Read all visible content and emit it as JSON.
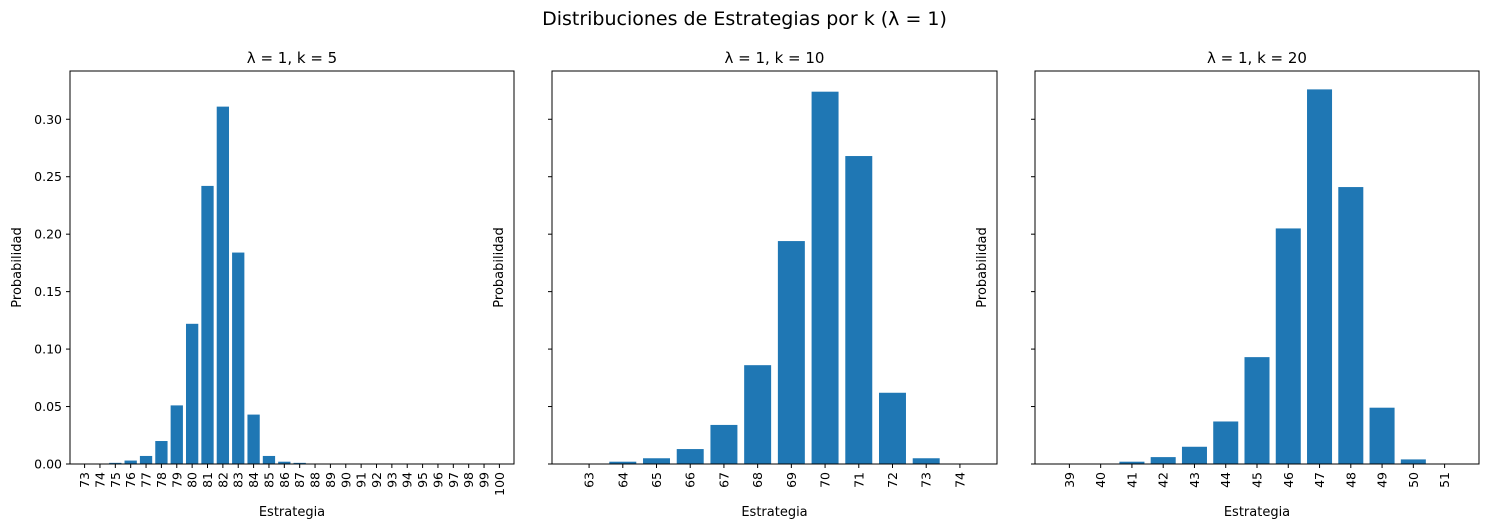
{
  "figure": {
    "suptitle": "Distribuciones de Estrategias por k (λ = 1)",
    "bar_color": "#1f77b4"
  },
  "chart_data": [
    {
      "type": "bar",
      "title": "λ = 1, k = 5",
      "xlabel": "Estrategia",
      "ylabel": "Probabilidad",
      "ylim": [
        0,
        0.342
      ],
      "yticks": [
        "0.00",
        "0.05",
        "0.10",
        "0.15",
        "0.20",
        "0.25",
        "0.30"
      ],
      "categories": [
        "73",
        "74",
        "75",
        "76",
        "77",
        "78",
        "79",
        "80",
        "81",
        "82",
        "83",
        "84",
        "85",
        "86",
        "87",
        "88",
        "89",
        "90",
        "91",
        "92",
        "93",
        "94",
        "95",
        "96",
        "97",
        "98",
        "99",
        "100"
      ],
      "values": [
        0.0,
        0.0,
        0.001,
        0.003,
        0.007,
        0.02,
        0.051,
        0.122,
        0.242,
        0.311,
        0.184,
        0.043,
        0.007,
        0.002,
        0.001,
        0.0,
        0.0,
        0.0,
        0.0,
        0.0,
        0.0,
        0.0,
        0.0,
        0.0,
        0.0,
        0.0,
        0.0,
        0.0
      ]
    },
    {
      "type": "bar",
      "title": "λ = 1, k = 10",
      "xlabel": "Estrategia",
      "ylabel": "Probabilidad",
      "ylim": [
        0,
        0.342
      ],
      "yticks": [],
      "categories": [
        "63",
        "64",
        "65",
        "66",
        "67",
        "68",
        "69",
        "70",
        "71",
        "72",
        "73",
        "74"
      ],
      "values": [
        0.0,
        0.002,
        0.005,
        0.013,
        0.034,
        0.086,
        0.194,
        0.324,
        0.268,
        0.062,
        0.005,
        0.0
      ]
    },
    {
      "type": "bar",
      "title": "λ = 1, k = 20",
      "xlabel": "Estrategia",
      "ylabel": "Probabilidad",
      "ylim": [
        0,
        0.342
      ],
      "yticks": [],
      "categories": [
        "39",
        "40",
        "41",
        "42",
        "43",
        "44",
        "45",
        "46",
        "47",
        "48",
        "49",
        "50",
        "51"
      ],
      "values": [
        0.0,
        0.0,
        0.002,
        0.006,
        0.015,
        0.037,
        0.093,
        0.205,
        0.326,
        0.241,
        0.049,
        0.004,
        0.0
      ]
    }
  ]
}
